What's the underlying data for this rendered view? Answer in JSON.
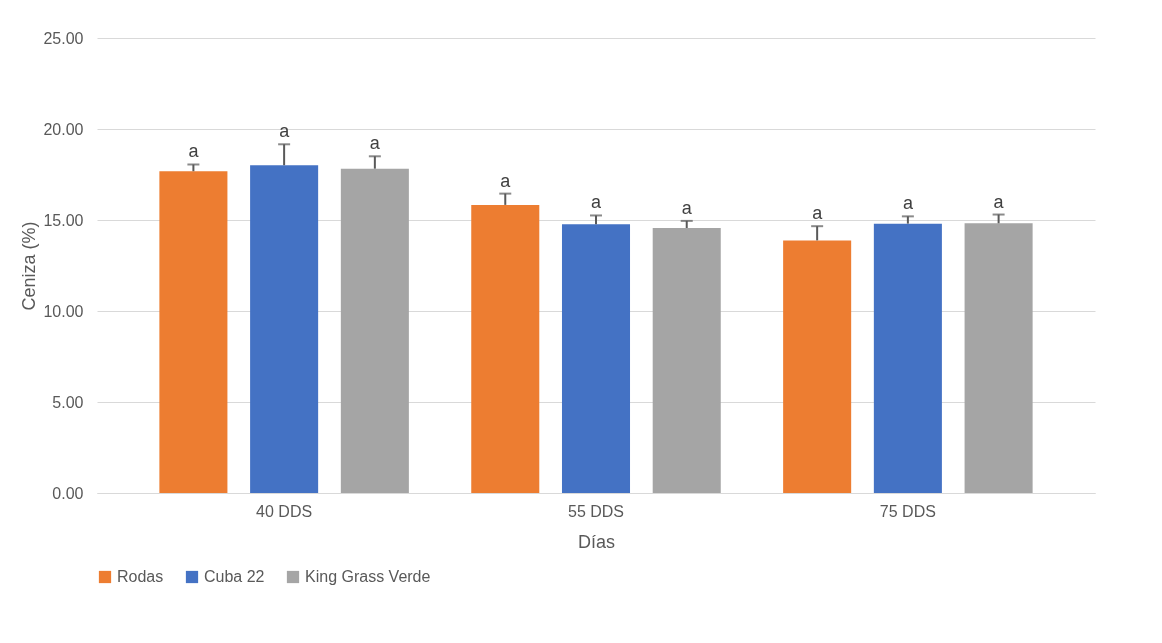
{
  "chart_data": {
    "type": "bar",
    "xlabel": "Días",
    "ylabel": "Ceniza (%)",
    "categories": [
      "40 DDS",
      "55 DDS",
      "75 DDS"
    ],
    "series": [
      {
        "name": "Rodas",
        "color": "#ed7d31",
        "values": [
          17.68,
          15.83,
          13.88
        ],
        "errors": [
          [
            17.68,
            18.05
          ],
          [
            15.83,
            16.45
          ],
          [
            13.88,
            14.66
          ]
        ],
        "value_labels": [
          "a",
          "a",
          "a"
        ]
      },
      {
        "name": "Cuba 22",
        "color": "#4472c4",
        "values": [
          18.01,
          14.76,
          14.8
        ],
        "errors": [
          [
            18.01,
            19.16
          ],
          [
            14.76,
            15.25
          ],
          [
            14.8,
            15.2
          ]
        ],
        "value_labels": [
          "a",
          "a",
          "a"
        ]
      },
      {
        "name": "King Grass Verde",
        "color": "#a5a5a5",
        "values": [
          17.82,
          14.56,
          14.82
        ],
        "errors": [
          [
            17.82,
            18.5
          ],
          [
            14.56,
            14.95
          ],
          [
            14.82,
            15.3
          ]
        ],
        "value_labels": [
          "a",
          "a",
          "a"
        ]
      }
    ],
    "ylim": [
      0,
      25
    ],
    "yticks": [
      {
        "value": 0,
        "label": "0.00"
      },
      {
        "value": 5,
        "label": "5.00"
      },
      {
        "value": 10,
        "label": "10.00"
      },
      {
        "value": 15,
        "label": "15.00"
      },
      {
        "value": 20,
        "label": "20.00"
      },
      {
        "value": 25,
        "label": "25.00"
      }
    ],
    "grid": "y",
    "legend": "bottom"
  }
}
